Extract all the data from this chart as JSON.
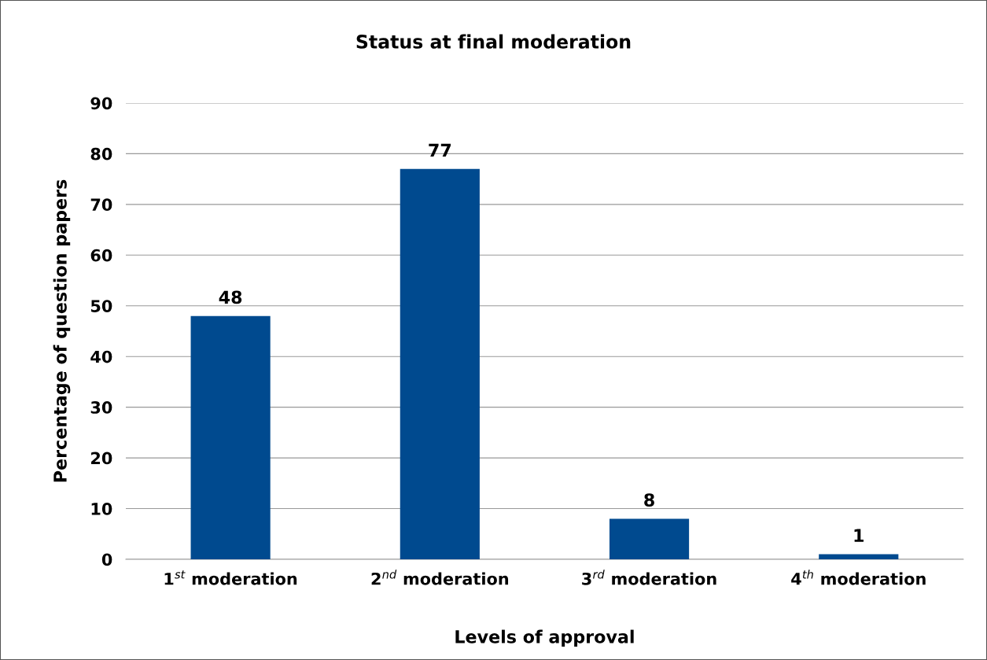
{
  "chart_data": {
    "type": "bar",
    "title": "Status at final moderation",
    "xlabel": "Levels of approval",
    "ylabel": "Percentage of question papers",
    "categories": [
      "1$^{st}$ moderation",
      "2$^{nd}$ moderation",
      "3$^{rd}$ moderation",
      "4$^{th}$ moderation"
    ],
    "values": [
      48,
      77,
      8,
      1
    ],
    "color": "#004a8f",
    "ylim": [
      0,
      90
    ],
    "yticks": [
      0,
      10,
      20,
      30,
      40,
      50,
      60,
      70,
      80,
      90
    ],
    "grid": "y",
    "data_labels": true
  }
}
